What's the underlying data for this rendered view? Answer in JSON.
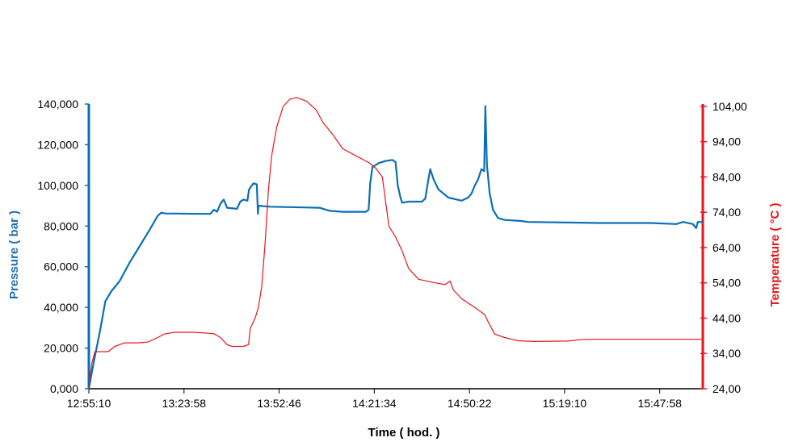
{
  "chart_data": {
    "type": "line",
    "xlabel": "Time ( hod. )",
    "ylabel_left": "Pressure ( bar )",
    "ylabel_right": "Temperature ( °C )",
    "x_tick_labels": [
      "12:55:10",
      "13:23:58",
      "13:52:46",
      "14:21:34",
      "14:50:22",
      "15:19:10",
      "15:47:58"
    ],
    "x_range": [
      "12:55:10",
      "16:01:00"
    ],
    "y_left": {
      "range": [
        0,
        140000
      ],
      "ticks": [
        0,
        20000,
        40000,
        60000,
        80000,
        100000,
        120000,
        140000
      ],
      "tick_labels": [
        "0,000",
        "20,000",
        "40,000",
        "60,000",
        "80,000",
        "100,000",
        "120,000",
        "140,000"
      ]
    },
    "y_right": {
      "range": [
        24,
        109
      ],
      "ticks": [
        24,
        34,
        44,
        54,
        64,
        74,
        84,
        94,
        104
      ],
      "tick_labels": [
        "24,00",
        "34,00",
        "44,00",
        "54,00",
        "64,00",
        "74,00",
        "84,00",
        "94,00",
        "104,00"
      ]
    },
    "grid": false,
    "series": [
      {
        "axis": "left",
        "color": "#0b6fb8",
        "points": [
          [
            "12:55:10",
            0
          ],
          [
            "12:56:30",
            12000
          ],
          [
            "12:58:30",
            28000
          ],
          [
            "13:00:10",
            43000
          ],
          [
            "13:02:00",
            48000
          ],
          [
            "13:04:30",
            53000
          ],
          [
            "13:07:30",
            62000
          ],
          [
            "13:10:30",
            70000
          ],
          [
            "13:13:30",
            78000
          ],
          [
            "13:16:00",
            85000
          ],
          [
            "13:17:00",
            86500
          ],
          [
            "13:18:30",
            86200
          ],
          [
            "13:30:00",
            86000
          ],
          [
            "13:32:00",
            86000
          ],
          [
            "13:33:00",
            88000
          ],
          [
            "13:34:00",
            87000
          ],
          [
            "13:35:00",
            91000
          ],
          [
            "13:36:00",
            93000
          ],
          [
            "13:37:00",
            89000
          ],
          [
            "13:40:00",
            88500
          ],
          [
            "13:41:00",
            92000
          ],
          [
            "13:42:00",
            93000
          ],
          [
            "13:43:10",
            92500
          ],
          [
            "13:43:40",
            98000
          ],
          [
            "13:45:00",
            101000
          ],
          [
            "13:46:00",
            100500
          ],
          [
            "13:46:20",
            86000
          ],
          [
            "13:46:30",
            90000
          ],
          [
            "13:50:00",
            89500
          ],
          [
            "14:05:00",
            89000
          ],
          [
            "14:08:00",
            87500
          ],
          [
            "14:12:00",
            87000
          ],
          [
            "14:19:00",
            87000
          ],
          [
            "14:19:50",
            88000
          ],
          [
            "14:20:20",
            101000
          ],
          [
            "14:21:00",
            109000
          ],
          [
            "14:23:00",
            111000
          ],
          [
            "14:25:00",
            112000
          ],
          [
            "14:27:00",
            112500
          ],
          [
            "14:28:00",
            111500
          ],
          [
            "14:28:40",
            100000
          ],
          [
            "14:29:30",
            94000
          ],
          [
            "14:30:00",
            91500
          ],
          [
            "14:32:00",
            92000
          ],
          [
            "14:36:00",
            92000
          ],
          [
            "14:37:00",
            93500
          ],
          [
            "14:37:50",
            102000
          ],
          [
            "14:38:30",
            108000
          ],
          [
            "14:39:30",
            103000
          ],
          [
            "14:41:00",
            98000
          ],
          [
            "14:44:00",
            94000
          ],
          [
            "14:48:00",
            92500
          ],
          [
            "14:50:00",
            94000
          ],
          [
            "14:51:00",
            96000
          ],
          [
            "14:52:00",
            100000
          ],
          [
            "14:53:00",
            103000
          ],
          [
            "14:54:00",
            108000
          ],
          [
            "14:54:50",
            107000
          ],
          [
            "14:55:10",
            139000
          ],
          [
            "14:55:40",
            110000
          ],
          [
            "14:56:30",
            96000
          ],
          [
            "14:57:30",
            88000
          ],
          [
            "14:59:00",
            84000
          ],
          [
            "15:01:00",
            83000
          ],
          [
            "15:06:00",
            82500
          ],
          [
            "15:08:00",
            82000
          ],
          [
            "15:30:00",
            81500
          ],
          [
            "15:45:00",
            81500
          ],
          [
            "15:53:00",
            81000
          ],
          [
            "15:55:00",
            82000
          ],
          [
            "15:58:00",
            81000
          ],
          [
            "15:59:00",
            79000
          ],
          [
            "15:59:30",
            82000
          ],
          [
            "16:01:00",
            82000
          ]
        ]
      },
      {
        "axis": "right",
        "color": "#e8161b",
        "points": [
          [
            "12:55:10",
            24
          ],
          [
            "12:56:00",
            31
          ],
          [
            "12:57:00",
            34.5
          ],
          [
            "12:58:30",
            34.5
          ],
          [
            "13:01:00",
            34.5
          ],
          [
            "13:03:00",
            36
          ],
          [
            "13:06:00",
            37
          ],
          [
            "13:10:00",
            37
          ],
          [
            "13:13:00",
            37.2
          ],
          [
            "13:16:00",
            38.5
          ],
          [
            "13:18:00",
            39.5
          ],
          [
            "13:21:00",
            40
          ],
          [
            "13:27:00",
            40
          ],
          [
            "13:33:00",
            39.6
          ],
          [
            "13:35:00",
            38.5
          ],
          [
            "13:37:00",
            36.5
          ],
          [
            "13:38:30",
            36
          ],
          [
            "13:42:00",
            36
          ],
          [
            "13:43:30",
            36.5
          ],
          [
            "13:44:00",
            41
          ],
          [
            "13:45:00",
            43
          ],
          [
            "13:45:30",
            44
          ],
          [
            "13:46:30",
            47
          ],
          [
            "13:47:30",
            53
          ],
          [
            "13:48:30",
            65
          ],
          [
            "13:49:30",
            80
          ],
          [
            "13:50:30",
            90
          ],
          [
            "13:52:00",
            98
          ],
          [
            "13:54:00",
            104
          ],
          [
            "13:56:00",
            106
          ],
          [
            "13:58:00",
            106.5
          ],
          [
            "14:01:00",
            105.5
          ],
          [
            "14:04:00",
            103
          ],
          [
            "14:06:00",
            99.5
          ],
          [
            "14:09:00",
            96
          ],
          [
            "14:12:00",
            92
          ],
          [
            "14:16:00",
            90
          ],
          [
            "14:20:00",
            88
          ],
          [
            "14:22:00",
            86.5
          ],
          [
            "14:24:00",
            84
          ],
          [
            "14:25:00",
            77
          ],
          [
            "14:26:00",
            70
          ],
          [
            "14:28:00",
            67
          ],
          [
            "14:30:00",
            63
          ],
          [
            "14:32:00",
            58
          ],
          [
            "14:35:00",
            55
          ],
          [
            "14:40:00",
            54
          ],
          [
            "14:43:00",
            53.5
          ],
          [
            "14:44:30",
            54.5
          ],
          [
            "14:45:30",
            52
          ],
          [
            "14:48:00",
            49.5
          ],
          [
            "14:52:00",
            47
          ],
          [
            "14:55:00",
            45
          ],
          [
            "14:56:00",
            43
          ],
          [
            "14:58:00",
            39.5
          ],
          [
            "15:01:00",
            38.5
          ],
          [
            "15:05:00",
            37.6
          ],
          [
            "15:10:00",
            37.4
          ],
          [
            "15:20:00",
            37.5
          ],
          [
            "15:25:00",
            38
          ],
          [
            "15:40:00",
            38
          ],
          [
            "16:01:00",
            38
          ]
        ]
      }
    ]
  },
  "colors": {
    "pressure": "#0b6fb8",
    "temperature": "#e8161b",
    "axis_x": "#000000"
  }
}
